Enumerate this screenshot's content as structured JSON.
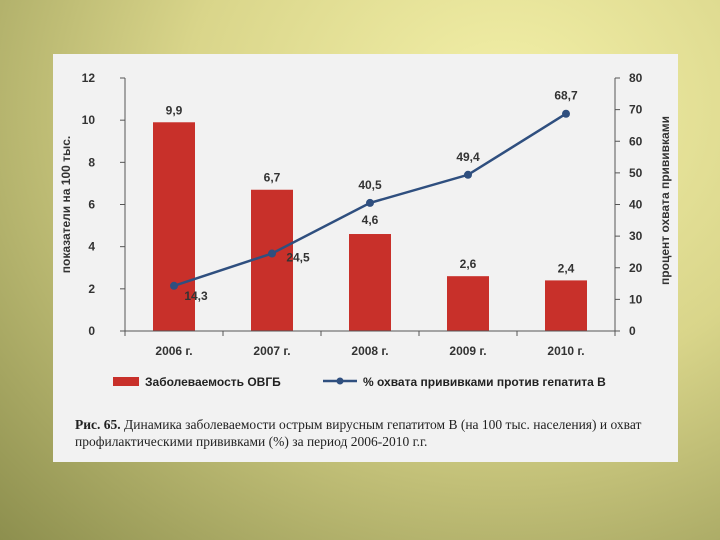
{
  "chart_data": {
    "type": "bar+line",
    "categories": [
      "2006 г.",
      "2007 г.",
      "2008 г.",
      "2009 г.",
      "2010 г."
    ],
    "series": [
      {
        "name": "Заболеваемость ОВГБ",
        "type": "bar",
        "axis": "left",
        "values": [
          9.9,
          6.7,
          4.6,
          2.6,
          2.4
        ],
        "labels": [
          "9,9",
          "6,7",
          "4,6",
          "2,6",
          "2,4"
        ]
      },
      {
        "name": "% охвата прививками против гепатита В",
        "type": "line",
        "axis": "right",
        "values": [
          14.3,
          24.5,
          40.5,
          49.4,
          68.7
        ],
        "labels": [
          "14,3",
          "24,5",
          "40,5",
          "49,4",
          "68,7"
        ]
      }
    ],
    "ylabel": "показатели на 100 тыс.",
    "y2label": "процент охвата прививками",
    "ylim": [
      0,
      12
    ],
    "y2lim": [
      0,
      80
    ],
    "yticks": [
      "0",
      "2",
      "4",
      "6",
      "8",
      "10",
      "12"
    ],
    "y2ticks": [
      "0",
      "10",
      "20",
      "30",
      "40",
      "50",
      "60",
      "70",
      "80"
    ],
    "grid": false,
    "legend_position": "bottom",
    "colors": {
      "bar": "#c8302a",
      "line": "#2f4f7f"
    }
  },
  "caption": {
    "lead": "Рис. 65.",
    "text": " Динамика заболеваемости острым вирусным гепатитом В (на 100 тыс. населения) и охват профилактическими прививками (%) за период 2006-2010 г.г."
  }
}
